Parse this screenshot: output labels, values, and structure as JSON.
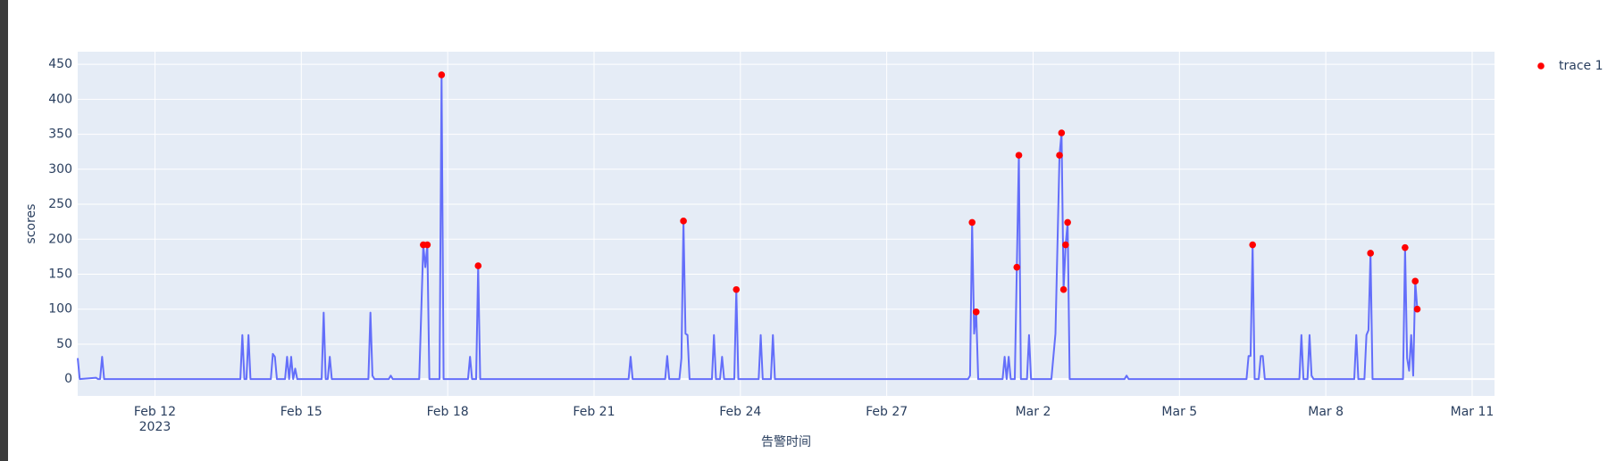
{
  "chart_data": {
    "type": "line",
    "x_label": "告警时间",
    "y_label": "scores",
    "xlim": [
      "2023-02-10 10:00",
      "2023-03-11 11:00"
    ],
    "ylim": [
      -24,
      468
    ],
    "yticks": [
      0,
      50,
      100,
      150,
      200,
      250,
      300,
      350,
      400,
      450
    ],
    "xticks": [
      {
        "value": "2023-02-12",
        "label": "Feb 12",
        "sublabel": "2023"
      },
      {
        "value": "2023-02-15",
        "label": "Feb 15"
      },
      {
        "value": "2023-02-18",
        "label": "Feb 18"
      },
      {
        "value": "2023-02-21",
        "label": "Feb 21"
      },
      {
        "value": "2023-02-24",
        "label": "Feb 24"
      },
      {
        "value": "2023-02-27",
        "label": "Feb 27"
      },
      {
        "value": "2023-03-02",
        "label": "Mar 2"
      },
      {
        "value": "2023-03-05",
        "label": "Mar 5"
      },
      {
        "value": "2023-03-08",
        "label": "Mar 8"
      },
      {
        "value": "2023-03-11",
        "label": "Mar 11"
      }
    ],
    "grid": true,
    "legend": "top-right",
    "series": [
      {
        "color": "#636efa",
        "mode": "lines",
        "x": [
          "2023-02-10 10:00",
          "2023-02-10 11:00",
          "2023-02-10 19:00",
          "2023-02-10 20:00",
          "2023-02-10 21:00",
          "2023-02-10 22:00",
          "2023-02-10 23:00",
          "2023-02-13 18:00",
          "2023-02-13 19:00",
          "2023-02-13 20:00",
          "2023-02-13 21:00",
          "2023-02-13 22:00",
          "2023-02-13 23:00",
          "2023-02-14 09:00",
          "2023-02-14 10:00",
          "2023-02-14 11:00",
          "2023-02-14 12:00",
          "2023-02-14 16:00",
          "2023-02-14 17:00",
          "2023-02-14 18:00",
          "2023-02-14 19:00",
          "2023-02-14 20:00",
          "2023-02-14 21:00",
          "2023-02-14 22:00",
          "2023-02-15 10:00",
          "2023-02-15 11:00",
          "2023-02-15 12:00",
          "2023-02-15 13:00",
          "2023-02-15 14:00",
          "2023-02-15 15:00",
          "2023-02-16 09:00",
          "2023-02-16 10:00",
          "2023-02-16 11:00",
          "2023-02-16 12:00",
          "2023-02-16 19:00",
          "2023-02-16 20:00",
          "2023-02-16 21:00",
          "2023-02-17 10:00",
          "2023-02-17 12:00",
          "2023-02-17 13:00",
          "2023-02-17 14:00",
          "2023-02-17 15:00",
          "2023-02-17 20:00",
          "2023-02-17 21:00",
          "2023-02-17 22:00",
          "2023-02-18 10:00",
          "2023-02-18 11:00",
          "2023-02-18 12:00",
          "2023-02-18 14:00",
          "2023-02-18 15:00",
          "2023-02-18 16:00",
          "2023-02-21 17:00",
          "2023-02-21 18:00",
          "2023-02-21 19:00",
          "2023-02-22 11:00",
          "2023-02-22 12:00",
          "2023-02-22 13:00",
          "2023-02-22 18:00",
          "2023-02-22 19:00",
          "2023-02-22 20:00",
          "2023-02-22 21:00",
          "2023-02-22 22:00",
          "2023-02-22 23:00",
          "2023-02-23 10:00",
          "2023-02-23 11:00",
          "2023-02-23 12:00",
          "2023-02-23 14:00",
          "2023-02-23 15:00",
          "2023-02-23 16:00",
          "2023-02-23 21:00",
          "2023-02-23 22:00",
          "2023-02-23 23:00",
          "2023-02-24 09:00",
          "2023-02-24 10:00",
          "2023-02-24 11:00",
          "2023-02-24 15:00",
          "2023-02-24 16:00",
          "2023-02-24 17:00",
          "2023-02-28 16:00",
          "2023-02-28 17:00",
          "2023-02-28 18:00",
          "2023-02-28 19:00",
          "2023-02-28 20:00",
          "2023-02-28 21:00",
          "2023-03-01 09:00",
          "2023-03-01 10:00",
          "2023-03-01 11:00",
          "2023-03-01 12:00",
          "2023-03-01 13:00",
          "2023-03-01 15:00",
          "2023-03-01 16:00",
          "2023-03-01 17:00",
          "2023-03-01 18:00",
          "2023-03-01 21:00",
          "2023-03-01 22:00",
          "2023-03-01 23:00",
          "2023-03-02 09:00",
          "2023-03-02 11:00",
          "2023-03-02 13:00",
          "2023-03-02 14:00",
          "2023-03-02 15:00",
          "2023-03-02 16:00",
          "2023-03-02 17:00",
          "2023-03-02 18:00",
          "2023-03-03 21:00",
          "2023-03-03 22:00",
          "2023-03-03 23:00",
          "2023-03-06 09:00",
          "2023-03-06 10:00",
          "2023-03-06 11:00",
          "2023-03-06 12:00",
          "2023-03-06 13:00",
          "2023-03-06 15:00",
          "2023-03-06 16:00",
          "2023-03-06 17:00",
          "2023-03-06 18:00",
          "2023-03-07 11:00",
          "2023-03-07 12:00",
          "2023-03-07 13:00",
          "2023-03-07 15:00",
          "2023-03-07 16:00",
          "2023-03-07 17:00",
          "2023-03-07 18:00",
          "2023-03-08 14:00",
          "2023-03-08 15:00",
          "2023-03-08 16:00",
          "2023-03-08 19:00",
          "2023-03-08 20:00",
          "2023-03-08 21:00",
          "2023-03-08 22:00",
          "2023-03-08 23:00",
          "2023-03-09 14:00",
          "2023-03-09 15:00",
          "2023-03-09 16:00",
          "2023-03-09 17:00",
          "2023-03-09 18:00",
          "2023-03-09 19:00",
          "2023-03-09 20:00",
          "2023-03-09 21:00"
        ],
        "values": [
          30,
          0,
          2,
          0,
          0,
          32,
          0,
          0,
          63,
          0,
          0,
          63,
          0,
          0,
          36,
          32,
          0,
          0,
          32,
          0,
          32,
          0,
          15,
          0,
          0,
          95,
          0,
          0,
          32,
          0,
          0,
          95,
          5,
          0,
          0,
          5,
          0,
          0,
          192,
          160,
          192,
          0,
          0,
          435,
          0,
          0,
          32,
          0,
          0,
          162,
          0,
          0,
          32,
          0,
          0,
          33,
          0,
          0,
          30,
          226,
          65,
          63,
          0,
          0,
          63,
          0,
          0,
          32,
          0,
          0,
          128,
          0,
          0,
          63,
          0,
          0,
          63,
          0,
          0,
          5,
          224,
          65,
          96,
          0,
          0,
          32,
          0,
          32,
          0,
          0,
          160,
          320,
          0,
          0,
          63,
          0,
          0,
          65,
          320,
          352,
          128,
          192,
          224,
          0,
          0,
          5,
          0,
          0,
          33,
          33,
          192,
          0,
          0,
          33,
          33,
          0,
          0,
          63,
          0,
          0,
          63,
          5,
          0,
          0,
          63,
          0,
          0,
          63,
          70,
          180,
          0,
          0,
          188,
          30,
          12,
          63,
          5,
          140,
          100
        ]
      },
      {
        "name": "trace 1",
        "color": "#ff0000",
        "mode": "markers",
        "x": [
          "2023-02-17 12:00",
          "2023-02-17 14:00",
          "2023-02-17 21:00",
          "2023-02-18 15:00",
          "2023-02-22 20:00",
          "2023-02-23 22:00",
          "2023-02-28 18:00",
          "2023-02-28 20:00",
          "2023-03-01 16:00",
          "2023-03-01 17:00",
          "2023-03-02 13:00",
          "2023-03-02 14:00",
          "2023-03-02 15:00",
          "2023-03-02 16:00",
          "2023-03-02 17:00",
          "2023-03-06 12:00",
          "2023-03-08 22:00",
          "2023-03-09 15:00",
          "2023-03-09 20:00",
          "2023-03-09 21:00"
        ],
        "values": [
          192,
          192,
          435,
          162,
          226,
          128,
          224,
          96,
          160,
          320,
          320,
          352,
          128,
          192,
          224,
          192,
          180,
          188,
          140,
          100
        ]
      }
    ]
  }
}
